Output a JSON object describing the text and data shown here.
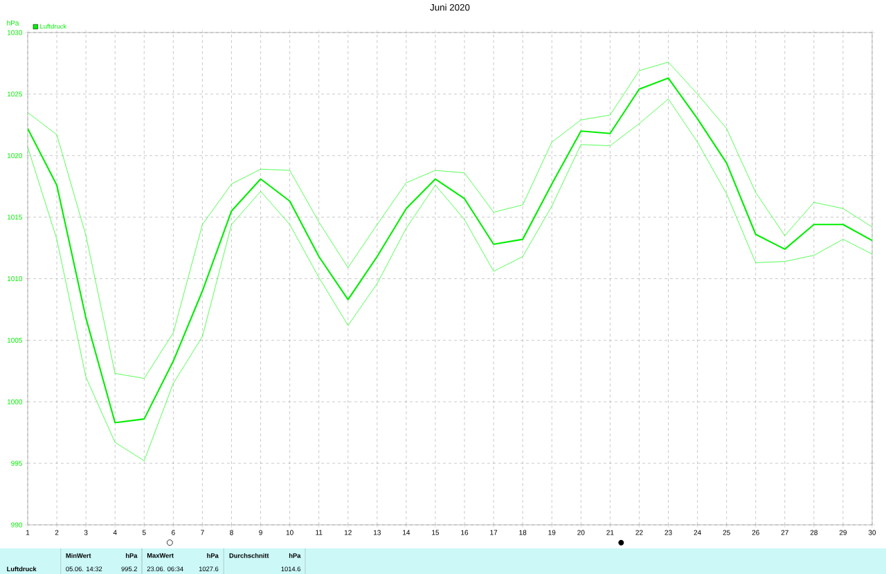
{
  "chart_data": {
    "type": "line",
    "title": "Juni 2020",
    "ylabel": "hPa",
    "x": [
      1,
      2,
      3,
      4,
      5,
      6,
      7,
      8,
      9,
      10,
      11,
      12,
      13,
      14,
      15,
      16,
      17,
      18,
      19,
      20,
      21,
      22,
      23,
      24,
      25,
      26,
      27,
      28,
      29,
      30
    ],
    "series": [
      {
        "color": "#00ff00",
        "values": [
          1023.5,
          1021.7,
          1013.5,
          1002.3,
          1001.9,
          1005.6,
          1014.4,
          1017.7,
          1018.9,
          1018.8,
          1014.6,
          1010.9,
          1014.4,
          1017.8,
          1018.8,
          1018.6,
          1015.4,
          1016.0,
          1021.1,
          1022.9,
          1023.3,
          1026.9,
          1027.6,
          1025.0,
          1022.2,
          1017.0,
          1013.5,
          1016.2,
          1015.7,
          1014.2
        ]
      },
      {
        "name": "Luftdruck",
        "color": "#00ee00",
        "values": [
          1022.2,
          1017.6,
          1006.8,
          998.3,
          998.6,
          1003.3,
          1009.0,
          1015.5,
          1018.1,
          1016.3,
          1011.8,
          1008.3,
          1011.8,
          1015.7,
          1018.1,
          1016.5,
          1012.8,
          1013.2,
          1017.7,
          1022.0,
          1021.8,
          1025.4,
          1026.3,
          1023.0,
          1019.4,
          1013.6,
          1012.4,
          1014.4,
          1014.4,
          1013.1
        ]
      },
      {
        "color": "#00ff00",
        "values": [
          1020.7,
          1013.2,
          1002.0,
          996.7,
          995.2,
          1001.5,
          1005.3,
          1014.4,
          1017.1,
          1014.4,
          1010.1,
          1006.2,
          1009.6,
          1014.1,
          1017.6,
          1014.8,
          1010.6,
          1011.8,
          1015.9,
          1020.9,
          1020.8,
          1022.6,
          1024.6,
          1021.1,
          1016.9,
          1011.3,
          1011.4,
          1011.9,
          1013.2,
          1012.0
        ]
      }
    ],
    "xlim": [
      1,
      30
    ],
    "xticks": [
      1,
      2,
      3,
      4,
      5,
      6,
      7,
      8,
      9,
      10,
      11,
      12,
      13,
      14,
      15,
      16,
      17,
      18,
      19,
      20,
      21,
      22,
      23,
      24,
      25,
      26,
      27,
      28,
      29,
      30
    ],
    "ylim": [
      990,
      1030
    ],
    "yticks": [
      990,
      995,
      1000,
      1005,
      1010,
      1015,
      1020,
      1025,
      1030
    ],
    "grid": true,
    "legend": "top left",
    "marker": "none",
    "line_style": "solid",
    "annotations": [
      "Luftdruck",
      "MinWert",
      "hPa",
      "05.06.  14:32",
      "995.2",
      "MaxWert",
      "hPa",
      "23.06.  06:34",
      "1027.6",
      "Durchschnitt",
      "hPa",
      "1014.6"
    ]
  }
}
